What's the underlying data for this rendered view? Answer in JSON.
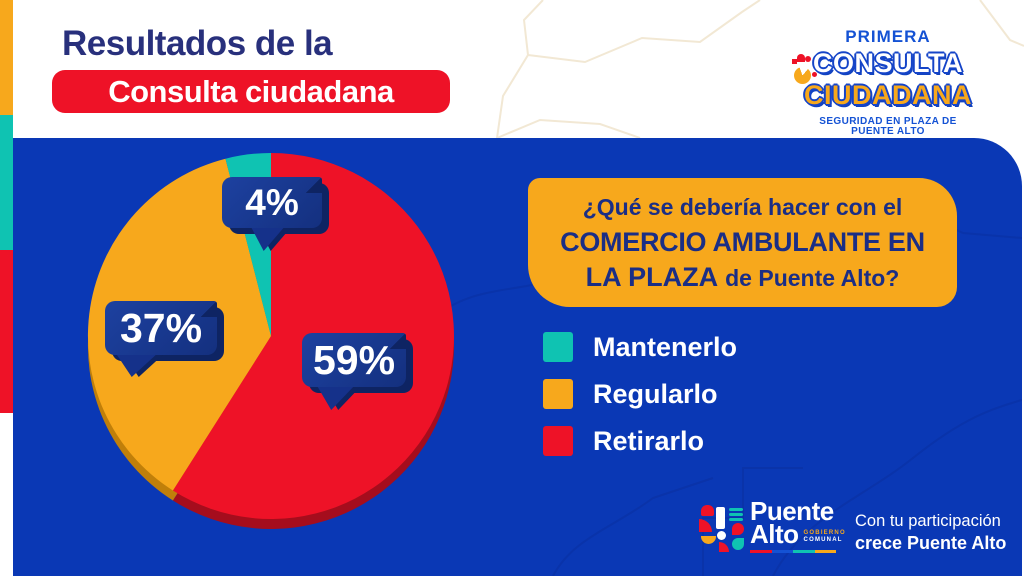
{
  "palette": {
    "panel_blue": "#0a38b5",
    "navy": "#16338c",
    "navy_dark": "#0e2463",
    "red": "#ee1227",
    "red_dark": "#a50d1d",
    "yellow": "#f7a81c",
    "yellow_dark": "#c07f0a",
    "teal": "#0fc3b2",
    "teal_dark": "#0a9185",
    "brand_blue": "#1452d4",
    "title_navy": "#28307c",
    "white": "#ffffff"
  },
  "header": {
    "title": "Resultados de la",
    "badge": "Consulta ciudadana"
  },
  "brand": {
    "kicker": "PRIMERA",
    "line1": "CONSULTA",
    "line2": "CIUDADANA",
    "subtitle": "SEGURIDAD EN PLAZA DE PUENTE ALTO"
  },
  "question": {
    "line1": "¿Qué se debería hacer con el",
    "line2": "COMERCIO AMBULANTE EN",
    "line3_bold": "LA PLAZA",
    "line3_rest": "de Puente Alto?"
  },
  "chart_data": {
    "type": "pie",
    "title": "¿Qué se debería hacer con el COMERCIO AMBULANTE EN LA PLAZA de Puente Alto?",
    "legend_position": "right",
    "start_angle_deg": 0,
    "direction": "clockwise",
    "slices": [
      {
        "label": "Retirarlo",
        "value": 59,
        "text": "59%",
        "color": "#ee1227",
        "dark": "#a50d1d"
      },
      {
        "label": "Regularlo",
        "value": 37,
        "text": "37%",
        "color": "#f7a81c",
        "dark": "#c07f0a"
      },
      {
        "label": "Mantenerlo",
        "value": 4,
        "text": "4%",
        "color": "#0fc3b2",
        "dark": "#0a9185"
      }
    ]
  },
  "footer": {
    "logo_line1": "Puente",
    "logo_line2": "Alto",
    "logo_sub1": "GOBIERNO",
    "logo_sub2": "COMUNAL",
    "tagline_line1": "Con tu participación",
    "tagline_line2": "crece Puente Alto"
  }
}
